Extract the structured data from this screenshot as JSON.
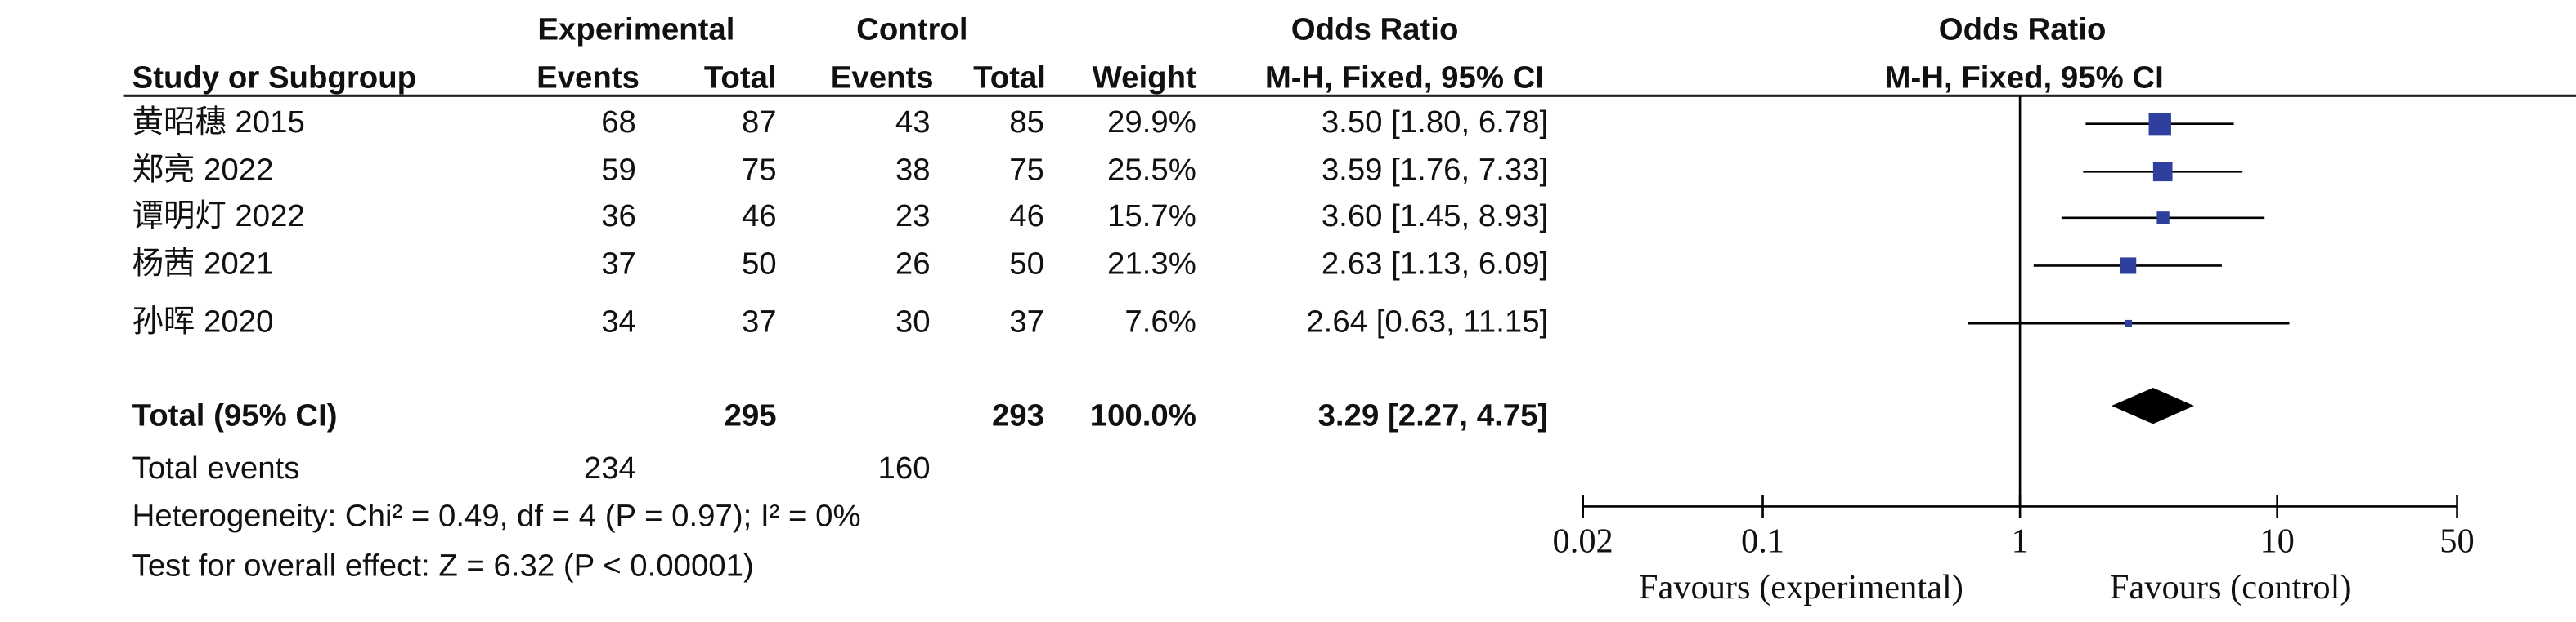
{
  "chart_data": {
    "type": "forest",
    "header_top": [
      "Experimental",
      "Control",
      "Odds Ratio",
      "Odds Ratio"
    ],
    "header_bottom": [
      "Study or Subgroup",
      "Events",
      "Total",
      "Events",
      "Total",
      "Weight",
      "M-H, Fixed, 95% CI",
      "M-H, Fixed, 95% CI"
    ],
    "studies": [
      "黄昭穗 2015",
      "郑亮 2022",
      "谭明灯 2022",
      "杨茜 2021",
      "孙晖 2020"
    ],
    "exp_events": [
      68,
      59,
      36,
      37,
      34
    ],
    "exp_total": [
      87,
      75,
      46,
      50,
      37
    ],
    "ctrl_events": [
      43,
      38,
      23,
      26,
      30
    ],
    "ctrl_total": [
      85,
      75,
      46,
      50,
      37
    ],
    "weights": [
      29.9,
      25.5,
      15.7,
      21.3,
      7.6
    ],
    "weight_labels": [
      "29.9%",
      "25.5%",
      "15.7%",
      "21.3%",
      "7.6%"
    ],
    "or": [
      3.5,
      3.59,
      3.6,
      2.63,
      2.64
    ],
    "ci_low": [
      1.8,
      1.76,
      1.45,
      1.13,
      0.63
    ],
    "ci_high": [
      6.78,
      7.33,
      8.93,
      6.09,
      11.15
    ],
    "ci_labels": [
      "3.50 [1.80, 6.78]",
      "3.59 [1.76, 7.33]",
      "3.60 [1.45, 8.93]",
      "2.63 [1.13, 6.09]",
      "2.64 [0.63, 11.15]"
    ],
    "total": {
      "label": "Total (95% CI)",
      "exp_total": 295,
      "ctrl_total": 293,
      "weight_label": "100.0%",
      "or": 3.29,
      "ci_low": 2.27,
      "ci_high": 4.75,
      "ci_label": "3.29 [2.27, 4.75]"
    },
    "total_events": {
      "label": "Total events",
      "exp": 234,
      "ctrl": 160
    },
    "heterogeneity": "Heterogeneity: Chi² = 0.49, df = 4 (P = 0.97); I² = 0%",
    "overall_effect": "Test for overall effect: Z = 6.32 (P < 0.00001)",
    "xlim": [
      0.02,
      50
    ],
    "xticks": [
      0.02,
      0.1,
      1,
      10,
      50
    ],
    "log_x": true,
    "square_color": "#2f3f9e",
    "diamond_color": "#000000",
    "favours_left": "Favours (experimental)",
    "favours_right": "Favours (control)"
  }
}
